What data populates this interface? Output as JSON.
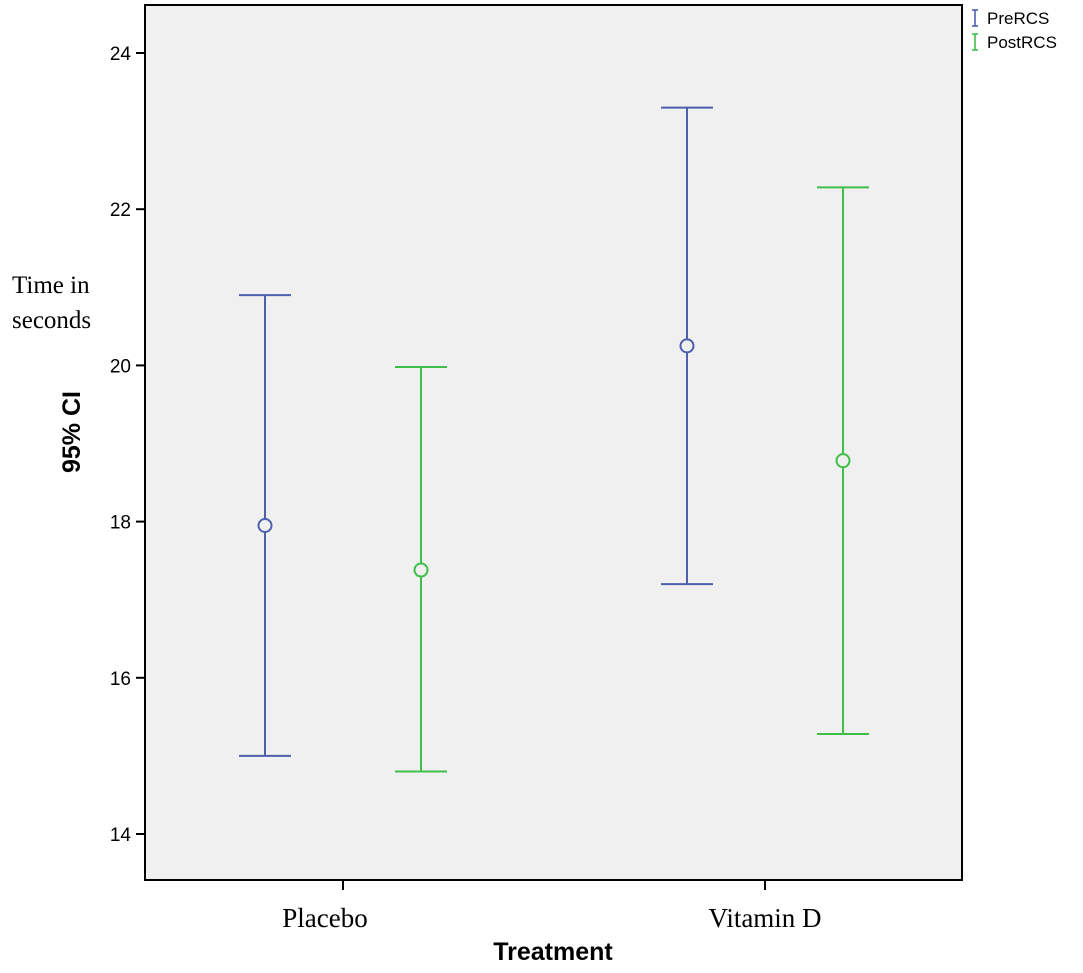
{
  "chart_data": {
    "type": "errorbar",
    "title": "",
    "xlabel": "Treatment",
    "ylabel": "95% CI",
    "ylabel_annotation": "Time in seconds",
    "ylabel_annotation_lines": [
      "Time in",
      "seconds"
    ],
    "categories": [
      "Placebo",
      "Vitamin D"
    ],
    "ylim": [
      13.5,
      24.6
    ],
    "yticks": [
      14,
      16,
      18,
      20,
      22,
      24
    ],
    "grid": false,
    "legend_position": "top-right",
    "series": [
      {
        "name": "PreRCS",
        "color": "#4e5fae",
        "points": [
          {
            "category": "Placebo",
            "mean": 17.95,
            "lower": 15.0,
            "upper": 20.9
          },
          {
            "category": "Vitamin D",
            "mean": 20.25,
            "lower": 17.2,
            "upper": 23.3
          }
        ]
      },
      {
        "name": "PostRCS",
        "color": "#3fbf4a",
        "points": [
          {
            "category": "Placebo",
            "mean": 17.38,
            "lower": 14.8,
            "upper": 19.98
          },
          {
            "category": "Vitamin D",
            "mean": 18.78,
            "lower": 15.28,
            "upper": 22.28
          }
        ]
      }
    ]
  },
  "colors": {
    "plot_background": "#f0f0f0",
    "axis": "#000000"
  }
}
